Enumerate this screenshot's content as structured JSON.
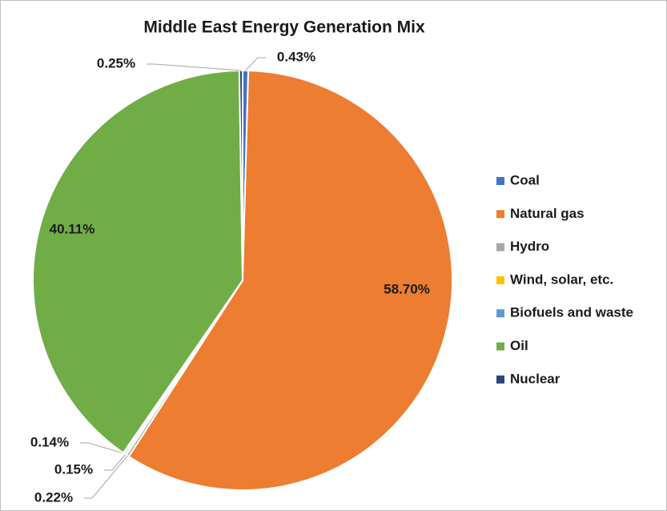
{
  "chart_data": {
    "type": "pie",
    "title": "Middle East Energy Generation Mix",
    "categories": [
      "Coal",
      "Natural gas",
      "Hydro",
      "Wind, solar, etc.",
      "Biofuels and waste",
      "Oil",
      "Nuclear"
    ],
    "values": [
      0.43,
      58.7,
      0.22,
      0.15,
      0.14,
      40.11,
      0.25
    ],
    "value_labels": [
      "0.43%",
      "58.70%",
      "0.22%",
      "0.15%",
      "0.14%",
      "40.11%",
      "0.25%"
    ],
    "colors": [
      "#4472c4",
      "#ed7d31",
      "#a5a5a5",
      "#ffc000",
      "#5b9bd5",
      "#70ad47",
      "#264478"
    ],
    "legend": "right"
  }
}
